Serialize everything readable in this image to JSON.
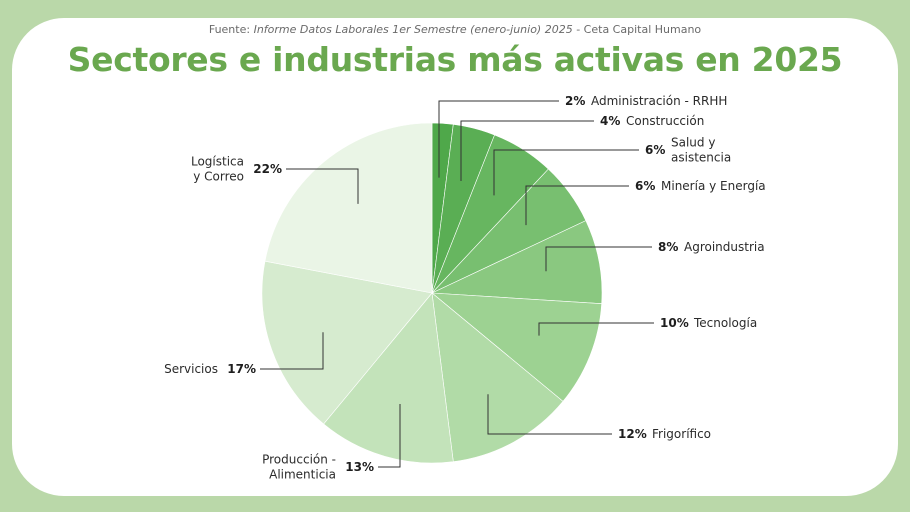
{
  "header": {
    "source_prefix": "Fuente: ",
    "source_italic": "Informe Datos Laborales 1er Semestre (enero-junio) 2025",
    "source_suffix": " - Ceta Capital Humano",
    "title": "Sectores e industrias más activas en 2025"
  },
  "colors": {
    "background": "#bad8a9",
    "card": "#ffffff",
    "title": "#6aa84f",
    "leader_line": "#333333"
  },
  "chart_data": {
    "type": "pie",
    "title": "Sectores e industrias más activas en 2025",
    "value_unit": "%",
    "start": "top",
    "direction": "clockwise",
    "slices": [
      {
        "label": [
          "Administración - RRHH"
        ],
        "value": 2,
        "pct_label": "2%",
        "color": "#4fa84a"
      },
      {
        "label": [
          "Construcción"
        ],
        "value": 4,
        "pct_label": "4%",
        "color": "#5aae54"
      },
      {
        "label": [
          "Salud y",
          "asistencia"
        ],
        "value": 6,
        "pct_label": "6%",
        "color": "#67b660"
      },
      {
        "label": [
          "Minería y Energía"
        ],
        "value": 6,
        "pct_label": "6%",
        "color": "#78bf70"
      },
      {
        "label": [
          "Agroindustria"
        ],
        "value": 8,
        "pct_label": "8%",
        "color": "#8ac880"
      },
      {
        "label": [
          "Tecnología"
        ],
        "value": 10,
        "pct_label": "10%",
        "color": "#9dd292"
      },
      {
        "label": [
          "Frigorífico"
        ],
        "value": 12,
        "pct_label": "12%",
        "color": "#b1dba7"
      },
      {
        "label": [
          "Producción -",
          "Alimenticia"
        ],
        "value": 13,
        "pct_label": "13%",
        "color": "#c3e3ba"
      },
      {
        "label": [
          "Servicios"
        ],
        "value": 17,
        "pct_label": "17%",
        "color": "#d6ebcf"
      },
      {
        "label": [
          "Logística",
          "y Correo"
        ],
        "value": 22,
        "pct_label": "22%",
        "color": "#eaf5e6"
      }
    ]
  }
}
